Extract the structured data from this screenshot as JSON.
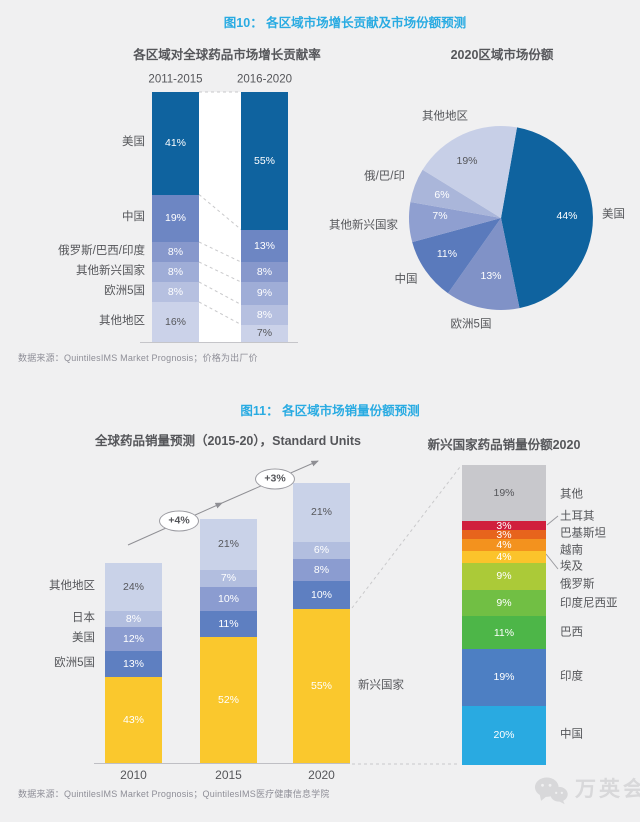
{
  "page_background": "#f0f0f1",
  "accent_color": "#29abe2",
  "figure10": {
    "title": "图10： 各区域市场增长贡献及市场份额预测",
    "source_note": "数据来源：QuintilesIMS Market Prognosis；价格为出厂价"
  },
  "figure11": {
    "title": "图11： 各区域市场销量份额预测",
    "source_note": "数据来源：QuintilesIMS Market Prognosis；QuintilesIMS医疗健康信息学院"
  },
  "watermark": {
    "icon": "wechat-icon",
    "label": "万英会"
  },
  "chart_data": [
    {
      "type": "bar",
      "stacked": true,
      "title": "各区域对全球药品市场增长贡献率",
      "categories": [
        "2011-2015",
        "2016-2020"
      ],
      "unit": "%",
      "ylim": [
        0,
        100
      ],
      "series": [
        {
          "name": "美国",
          "values": [
            41,
            55
          ],
          "color": "#0f639f",
          "label_color": "#ffffff"
        },
        {
          "name": "中国",
          "values": [
            19,
            13
          ],
          "color": "#6d86c3",
          "label_color": "#ffffff"
        },
        {
          "name": "俄罗斯/巴西/印度",
          "values": [
            8,
            8
          ],
          "color": "#8798cc",
          "label_color": "#ffffff"
        },
        {
          "name": "其他新兴国家",
          "values": [
            8,
            9
          ],
          "color": "#9fadd7",
          "label_color": "#ffffff"
        },
        {
          "name": "欧洲5国",
          "values": [
            8,
            8
          ],
          "color": "#b6c0e0",
          "label_color": "#ffffff"
        },
        {
          "name": "其他地区",
          "values": [
            16,
            7
          ],
          "color": "#cbd2e9",
          "label_color": "#55565a"
        }
      ]
    },
    {
      "type": "pie",
      "title": "2020区域市场份额",
      "unit": "%",
      "start_angle_deg": 10,
      "clockwise": true,
      "slices": [
        {
          "label": "美国",
          "value": 44,
          "color": "#0f639f",
          "label_color": "#ffffff"
        },
        {
          "label": "欧洲5国",
          "value": 13,
          "color": "#8092c7",
          "label_color": "#ffffff"
        },
        {
          "label": "中国",
          "value": 11,
          "color": "#5a7abc",
          "label_color": "#ffffff"
        },
        {
          "label": "其他新兴国家",
          "value": 7,
          "color": "#8f9fd0",
          "label_color": "#ffffff"
        },
        {
          "label": "俄/巴/印",
          "value": 6,
          "color": "#aab6da",
          "label_color": "#ffffff"
        },
        {
          "label": "其他地区",
          "value": 19,
          "color": "#c7cfe7",
          "label_color": "#55565a"
        }
      ]
    },
    {
      "type": "bar",
      "stacked": true,
      "title": "全球药品销量预测（2015-20），Standard Units",
      "categories": [
        "2010",
        "2015",
        "2020"
      ],
      "unit": "%",
      "series": [
        {
          "name": "其他地区",
          "values": [
            24,
            21,
            21
          ],
          "color": "#c9d2e8",
          "label_color": "#55565a"
        },
        {
          "name": "日本",
          "values": [
            8,
            7,
            6
          ],
          "color": "#b2bedf",
          "label_color": "#ffffff"
        },
        {
          "name": "美国",
          "values": [
            12,
            10,
            8
          ],
          "color": "#8b9cd0",
          "label_color": "#ffffff"
        },
        {
          "name": "欧洲5国",
          "values": [
            13,
            11,
            10
          ],
          "color": "#5e7fc1",
          "label_color": "#ffffff"
        },
        {
          "name": "新兴国家",
          "values": [
            43,
            52,
            55
          ],
          "color": "#fac82d",
          "label_color": "#ffffff"
        }
      ],
      "growth_annotations": [
        {
          "label": "+4%",
          "between": [
            "2010",
            "2015"
          ]
        },
        {
          "label": "+3%",
          "between": [
            "2015",
            "2020"
          ]
        }
      ]
    },
    {
      "type": "bar",
      "stacked": true,
      "title": "新兴国家药品销量份额2020",
      "unit": "%",
      "segments": [
        {
          "label": "其他",
          "value": 19,
          "color": "#c8c8cc",
          "label_color": "#55565a"
        },
        {
          "label": "土耳其",
          "value": 3,
          "color": "#d01f3d",
          "label_color": "#ffffff"
        },
        {
          "label": "巴基斯坦",
          "value": 3,
          "color": "#e7641c",
          "label_color": "#ffffff"
        },
        {
          "label": "越南",
          "value": 4,
          "color": "#f3921e",
          "label_color": "#ffffff"
        },
        {
          "label": "埃及",
          "value": 4,
          "color": "#fbc32b",
          "label_color": "#ffffff"
        },
        {
          "label": "俄罗斯",
          "value": 9,
          "color": "#abca38",
          "label_color": "#ffffff"
        },
        {
          "label": "印度尼西亚",
          "value": 9,
          "color": "#71bf44",
          "label_color": "#ffffff"
        },
        {
          "label": "巴西",
          "value": 11,
          "color": "#4db648",
          "label_color": "#ffffff"
        },
        {
          "label": "印度",
          "value": 19,
          "color": "#4d7fc3",
          "label_color": "#ffffff"
        },
        {
          "label": "中国",
          "value": 20,
          "color": "#29aae1",
          "label_color": "#ffffff"
        }
      ]
    }
  ]
}
